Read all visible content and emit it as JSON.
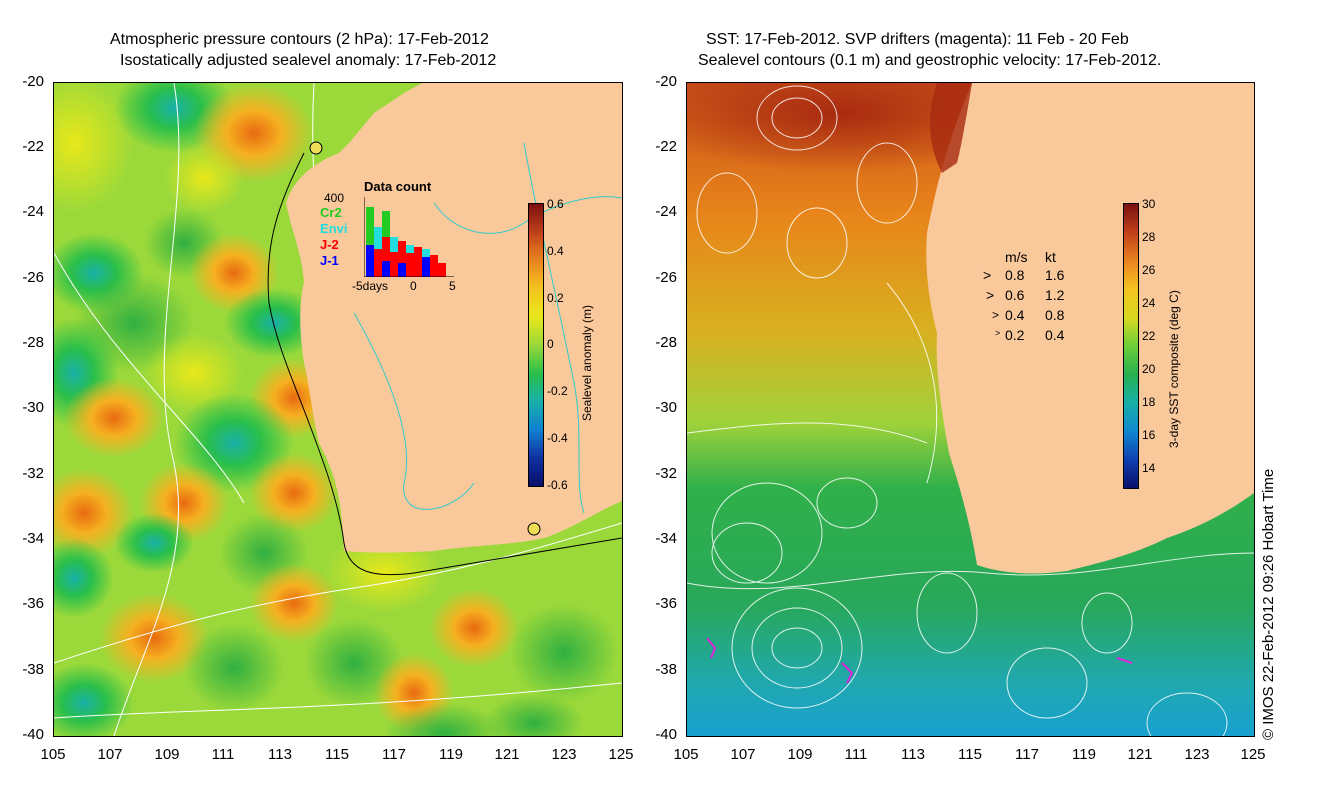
{
  "left_panel": {
    "title_line1": "Atmospheric pressure contours (2 hPa): 17-Feb-2012",
    "title_line2": "Isostatically adjusted sealevel anomaly: 17-Feb-2012",
    "colorbar_label": "Sealevel anomaly (m)",
    "colorbar_ticks": [
      "0.6",
      "0.4",
      "0.2",
      "0",
      "-0.2",
      "-0.4",
      "-0.6"
    ],
    "data_count": {
      "title": "Data count",
      "ymax_label": "400",
      "xlabel_left": "-5days",
      "xlabel_mid": "0",
      "xlabel_right": "5",
      "legend": [
        {
          "name": "Cr2",
          "color": "#22cc22"
        },
        {
          "name": "Envi",
          "color": "#22dddd"
        },
        {
          "name": "J-2",
          "color": "#ff0000"
        },
        {
          "name": "J-1",
          "color": "#0000ff"
        }
      ]
    }
  },
  "right_panel": {
    "title_line1": "SST: 17-Feb-2012. SVP drifters (magenta): 11 Feb - 20 Feb",
    "title_line2": "Sealevel contours (0.1 m) and geostrophic velocity: 17-Feb-2012.",
    "colorbar_label": "3-day SST composite (deg C)",
    "colorbar_ticks": [
      "30",
      "28",
      "26",
      "24",
      "22",
      "20",
      "18",
      "16",
      "14"
    ],
    "velocity_legend": {
      "header_ms": "m/s",
      "header_kt": "kt",
      "rows": [
        {
          "ms": "0.8",
          "kt": "1.6"
        },
        {
          "ms": "0.6",
          "kt": "1.2"
        },
        {
          "ms": "0.4",
          "kt": "0.8"
        },
        {
          "ms": "0.2",
          "kt": "0.4"
        }
      ]
    },
    "credit": "© IMOS 22-Feb-2012 09:26 Hobart Time"
  },
  "axes": {
    "y_ticks": [
      "-20",
      "-22",
      "-24",
      "-26",
      "-28",
      "-30",
      "-32",
      "-34",
      "-36",
      "-38",
      "-40"
    ],
    "x_ticks": [
      "105",
      "107",
      "109",
      "111",
      "113",
      "115",
      "117",
      "119",
      "121",
      "123",
      "125"
    ]
  },
  "colors": {
    "land": "#f9c89b",
    "coast_contour": "#33cccc"
  }
}
